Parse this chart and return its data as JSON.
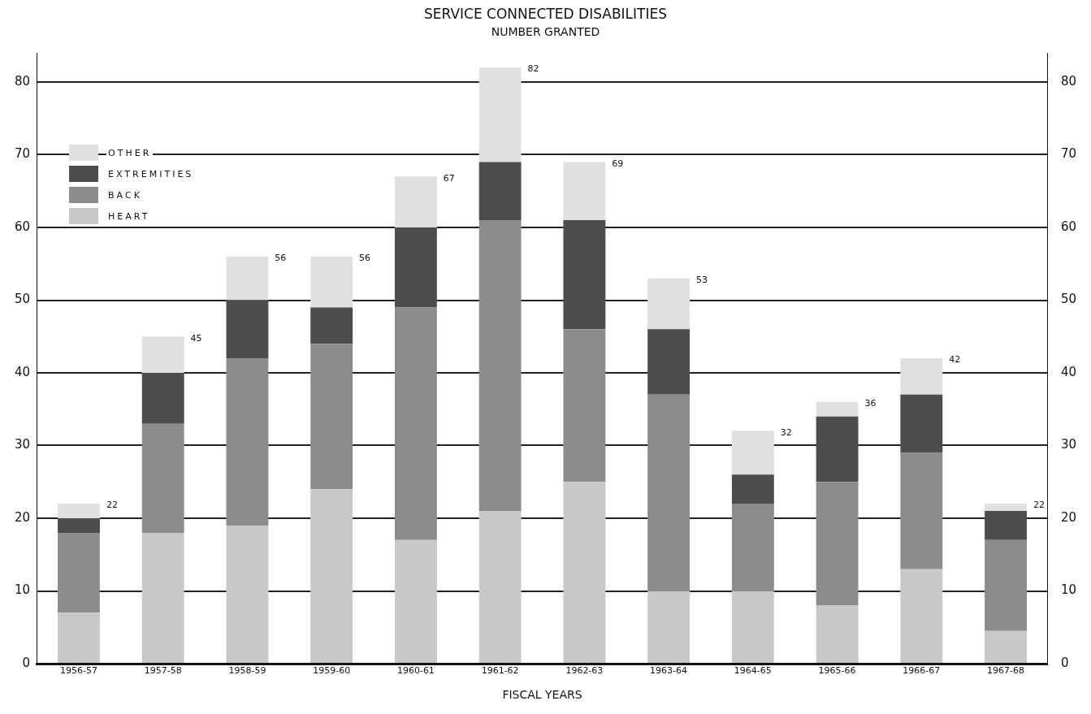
{
  "chart_data": {
    "type": "bar",
    "title": "SERVICE CONNECTED DISABILITIES",
    "subtitle": "NUMBER GRANTED",
    "xlabel": "FISCAL YEARS",
    "categories": [
      "1956-57",
      "1957-58",
      "1958-59",
      "1959-60",
      "1960-61",
      "1961-62",
      "1962-63",
      "1963-64",
      "1964-65",
      "1965-66",
      "1966-67",
      "1967-68"
    ],
    "series": [
      {
        "name": "HEART",
        "color": "#c8c8c8",
        "values": [
          7,
          18,
          19,
          24,
          17,
          21,
          25,
          10,
          10,
          8,
          13,
          4.5
        ]
      },
      {
        "name": "BACK",
        "color": "#8c8c8c",
        "values": [
          11,
          15,
          23,
          20,
          32,
          40,
          21,
          27,
          12,
          17,
          16,
          12.5
        ]
      },
      {
        "name": "EXTREMITIES",
        "color": "#4d4d4d",
        "values": [
          2,
          7,
          8,
          5,
          11,
          8,
          15,
          9,
          4,
          9,
          8,
          4
        ]
      },
      {
        "name": "OTHER",
        "color": "#e0e0e0",
        "values": [
          2,
          5,
          6,
          7,
          7,
          13,
          8,
          7,
          6,
          2,
          5,
          1
        ]
      }
    ],
    "stacked": true,
    "totals": [
      "22",
      "45",
      "56",
      "56",
      "67",
      "82",
      "69",
      "53",
      "32",
      "36",
      "42",
      "22"
    ],
    "ylim": [
      0,
      84
    ],
    "yticks": [
      0,
      10,
      20,
      30,
      40,
      50,
      60,
      70,
      80
    ],
    "y2lim": [
      0,
      84
    ],
    "y2ticks": [
      0,
      10,
      20,
      30,
      40,
      50,
      60,
      70,
      80
    ],
    "grid": "y",
    "legend": "top left"
  }
}
